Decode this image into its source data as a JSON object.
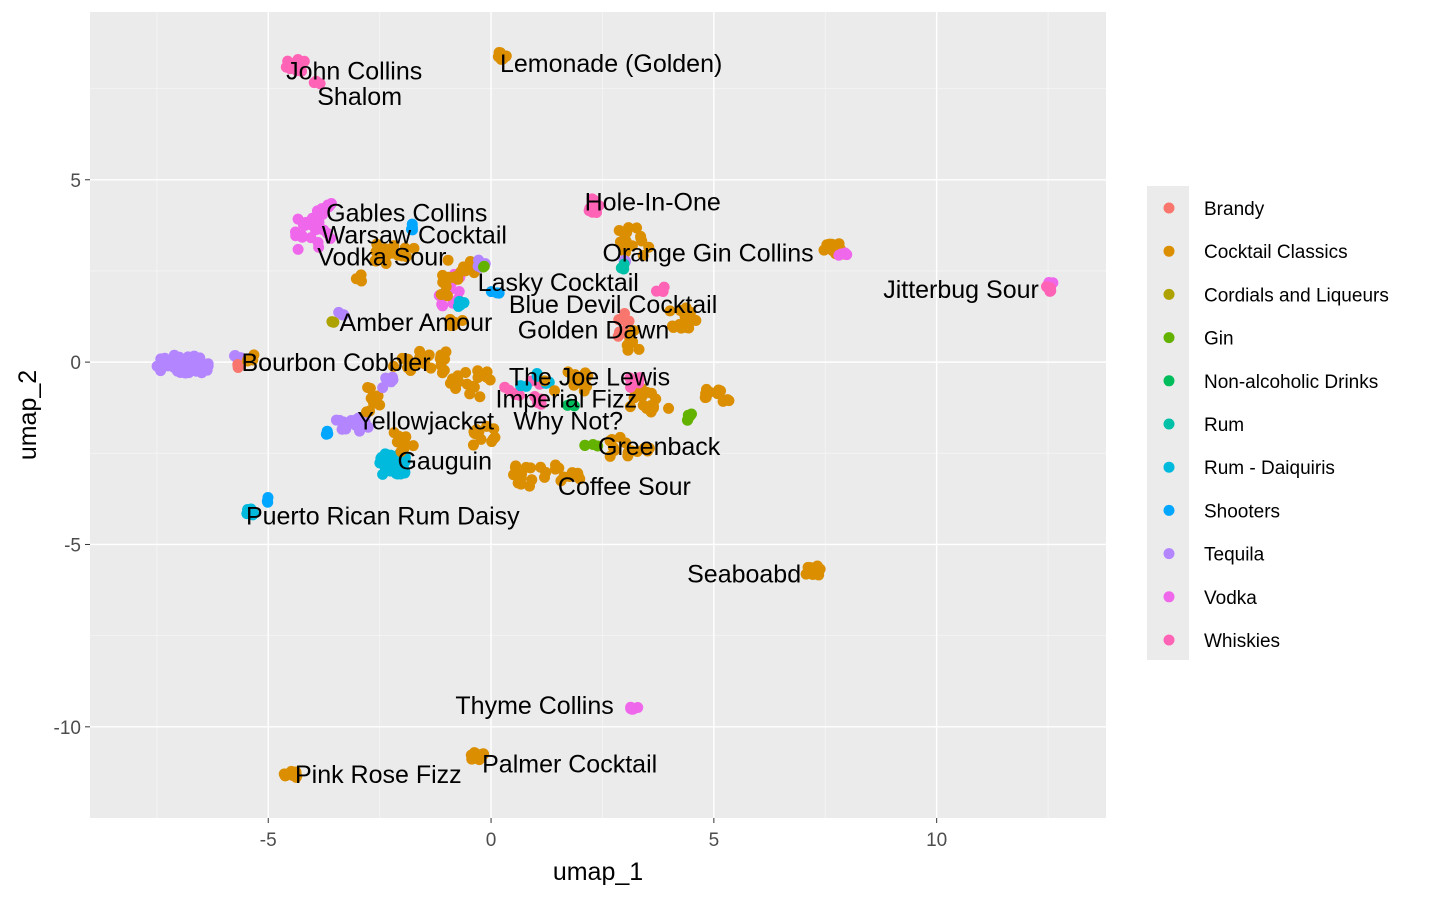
{
  "chart_data": {
    "type": "scatter",
    "xlabel": "umap_1",
    "ylabel": "umap_2",
    "xlim": [
      -9.0,
      13.8
    ],
    "ylim": [
      -12.5,
      9.6
    ],
    "x_ticks": [
      -5,
      0,
      5,
      10
    ],
    "y_ticks": [
      -10,
      -5,
      0,
      5
    ],
    "x_tick_labels": [
      "-5",
      "0",
      "5",
      "10"
    ],
    "y_tick_labels": [
      "-10",
      "-5",
      "0",
      "5"
    ],
    "grid": true,
    "legend": "right",
    "categories": [
      {
        "name": "Brandy",
        "color": "#F8766D"
      },
      {
        "name": "Cocktail Classics",
        "color": "#DB8E00"
      },
      {
        "name": "Cordials and Liqueurs",
        "color": "#AEA200"
      },
      {
        "name": "Gin",
        "color": "#64B200"
      },
      {
        "name": "Non-alcoholic Drinks",
        "color": "#00BD5C"
      },
      {
        "name": "Rum",
        "color": "#00C1A7"
      },
      {
        "name": "Rum - Daiquiris",
        "color": "#00BADE"
      },
      {
        "name": "Shooters",
        "color": "#00A6FF"
      },
      {
        "name": "Tequila",
        "color": "#B385FF"
      },
      {
        "name": "Vodka",
        "color": "#EF67EB"
      },
      {
        "name": "Whiskies",
        "color": "#FF63B6"
      }
    ],
    "labels": [
      {
        "text": "John Collins",
        "x": -4.6,
        "y": 8.0
      },
      {
        "text": "Shalom",
        "x": -3.9,
        "y": 7.3
      },
      {
        "text": "Lemonade (Golden)",
        "x": 0.2,
        "y": 8.2
      },
      {
        "text": "Hole-In-One",
        "x": 2.1,
        "y": 4.4
      },
      {
        "text": "Gables Collins",
        "x": -3.7,
        "y": 4.1
      },
      {
        "text": "Warsaw Cocktail",
        "x": -3.8,
        "y": 3.5
      },
      {
        "text": "Vodka Sour",
        "x": -3.9,
        "y": 2.9
      },
      {
        "text": "Orange Gin Collins",
        "x": 2.5,
        "y": 3.0
      },
      {
        "text": "Lasky Cocktail",
        "x": -0.3,
        "y": 2.2
      },
      {
        "text": "Jitterbug Sour",
        "x": 8.8,
        "y": 2.0
      },
      {
        "text": "Blue Devil Cocktail",
        "x": 0.4,
        "y": 1.6
      },
      {
        "text": "Amber Amour",
        "x": -3.4,
        "y": 1.1
      },
      {
        "text": "Golden Dawn",
        "x": 0.6,
        "y": 0.9
      },
      {
        "text": "Bourbon Cobbler",
        "x": -5.6,
        "y": 0.0
      },
      {
        "text": "The Joe Lewis",
        "x": 0.4,
        "y": -0.4
      },
      {
        "text": "Imperial Fizz",
        "x": 0.1,
        "y": -1.0
      },
      {
        "text": "Yellowjacket",
        "x": -3.0,
        "y": -1.6
      },
      {
        "text": "Why Not?",
        "x": 0.5,
        "y": -1.6
      },
      {
        "text": "Greenback",
        "x": 2.4,
        "y": -2.3
      },
      {
        "text": "Gauguin",
        "x": -2.1,
        "y": -2.7
      },
      {
        "text": "Coffee Sour",
        "x": 1.5,
        "y": -3.4
      },
      {
        "text": "Puerto Rican Rum Daisy",
        "x": -5.5,
        "y": -4.2
      },
      {
        "text": "Seaboabd",
        "x": 4.4,
        "y": -5.8
      },
      {
        "text": "Thyme Collins",
        "x": -0.8,
        "y": -9.4
      },
      {
        "text": "Pink Rose Fizz",
        "x": -4.4,
        "y": -11.3
      },
      {
        "text": "Palmer Cocktail",
        "x": -0.2,
        "y": -11.0
      }
    ],
    "clusters": [
      {
        "c": 10,
        "n": 14,
        "x": -4.4,
        "y": 8.1,
        "sx": 0.25,
        "sy": 0.2
      },
      {
        "c": 10,
        "n": 4,
        "x": -3.9,
        "y": 7.7,
        "sx": 0.1,
        "sy": 0.1
      },
      {
        "c": 1,
        "n": 10,
        "x": 0.2,
        "y": 8.4,
        "sx": 0.15,
        "sy": 0.12
      },
      {
        "c": 10,
        "n": 8,
        "x": 2.3,
        "y": 4.3,
        "sx": 0.2,
        "sy": 0.2
      },
      {
        "c": 9,
        "n": 20,
        "x": -4.0,
        "y": 3.4,
        "sx": 0.4,
        "sy": 0.6
      },
      {
        "c": 9,
        "n": 8,
        "x": -3.7,
        "y": 4.2,
        "sx": 0.2,
        "sy": 0.15
      },
      {
        "c": 7,
        "n": 4,
        "x": -1.8,
        "y": 3.7,
        "sx": 0.1,
        "sy": 0.1
      },
      {
        "c": 1,
        "n": 16,
        "x": -2.2,
        "y": 3.0,
        "sx": 0.5,
        "sy": 0.3
      },
      {
        "c": 1,
        "n": 16,
        "x": 3.2,
        "y": 3.3,
        "sx": 0.4,
        "sy": 0.4
      },
      {
        "c": 8,
        "n": 3,
        "x": 3.0,
        "y": 2.8,
        "sx": 0.1,
        "sy": 0.1
      },
      {
        "c": 5,
        "n": 3,
        "x": 2.9,
        "y": 2.6,
        "sx": 0.1,
        "sy": 0.1
      },
      {
        "c": 1,
        "n": 12,
        "x": 7.7,
        "y": 3.1,
        "sx": 0.25,
        "sy": 0.15
      },
      {
        "c": 9,
        "n": 4,
        "x": 7.9,
        "y": 2.9,
        "sx": 0.1,
        "sy": 0.1
      },
      {
        "c": 9,
        "n": 3,
        "x": 12.6,
        "y": 2.1,
        "sx": 0.15,
        "sy": 0.1
      },
      {
        "c": 10,
        "n": 4,
        "x": 12.5,
        "y": 2.0,
        "sx": 0.1,
        "sy": 0.1
      },
      {
        "c": 9,
        "n": 12,
        "x": -0.9,
        "y": 2.0,
        "sx": 0.3,
        "sy": 0.5
      },
      {
        "c": 1,
        "n": 14,
        "x": -0.6,
        "y": 2.5,
        "sx": 0.4,
        "sy": 0.3
      },
      {
        "c": 8,
        "n": 4,
        "x": -0.2,
        "y": 2.7,
        "sx": 0.1,
        "sy": 0.1
      },
      {
        "c": 3,
        "n": 2,
        "x": -0.2,
        "y": 2.6,
        "sx": 0.05,
        "sy": 0.05
      },
      {
        "c": 6,
        "n": 4,
        "x": -0.8,
        "y": 1.6,
        "sx": 0.2,
        "sy": 0.1
      },
      {
        "c": 7,
        "n": 3,
        "x": 0.1,
        "y": 1.9,
        "sx": 0.1,
        "sy": 0.1
      },
      {
        "c": 1,
        "n": 14,
        "x": 4.3,
        "y": 1.2,
        "sx": 0.3,
        "sy": 0.3
      },
      {
        "c": 0,
        "n": 10,
        "x": 3.0,
        "y": 1.0,
        "sx": 0.15,
        "sy": 0.4
      },
      {
        "c": 1,
        "n": 8,
        "x": 3.2,
        "y": 0.6,
        "sx": 0.15,
        "sy": 0.3
      },
      {
        "c": 10,
        "n": 3,
        "x": 3.8,
        "y": 2.0,
        "sx": 0.1,
        "sy": 0.1
      },
      {
        "c": 1,
        "n": 8,
        "x": -1.0,
        "y": 2.1,
        "sx": 0.3,
        "sy": 0.3
      },
      {
        "c": 2,
        "n": 3,
        "x": -3.5,
        "y": 1.1,
        "sx": 0.1,
        "sy": 0.1
      },
      {
        "c": 8,
        "n": 3,
        "x": -3.4,
        "y": 1.3,
        "sx": 0.1,
        "sy": 0.1
      },
      {
        "c": 1,
        "n": 4,
        "x": -3.0,
        "y": 2.3,
        "sx": 0.1,
        "sy": 0.1
      },
      {
        "c": 1,
        "n": 6,
        "x": -0.7,
        "y": 1.1,
        "sx": 0.3,
        "sy": 0.1
      },
      {
        "c": 8,
        "n": 44,
        "x": -6.9,
        "y": -0.05,
        "sx": 0.6,
        "sy": 0.25
      },
      {
        "c": 8,
        "n": 4,
        "x": -5.7,
        "y": 0.1,
        "sx": 0.1,
        "sy": 0.1
      },
      {
        "c": 0,
        "n": 2,
        "x": -5.7,
        "y": -0.1,
        "sx": 0.05,
        "sy": 0.05
      },
      {
        "c": 1,
        "n": 4,
        "x": -5.4,
        "y": 0.1,
        "sx": 0.1,
        "sy": 0.1
      },
      {
        "c": 1,
        "n": 22,
        "x": -1.6,
        "y": 0.0,
        "sx": 0.6,
        "sy": 0.3
      },
      {
        "c": 1,
        "n": 16,
        "x": -0.5,
        "y": -0.6,
        "sx": 0.5,
        "sy": 0.4
      },
      {
        "c": 10,
        "n": 12,
        "x": 0.7,
        "y": -0.8,
        "sx": 0.5,
        "sy": 0.4
      },
      {
        "c": 6,
        "n": 6,
        "x": 1.0,
        "y": -0.5,
        "sx": 0.4,
        "sy": 0.2
      },
      {
        "c": 1,
        "n": 14,
        "x": 1.7,
        "y": -0.5,
        "sx": 0.5,
        "sy": 0.3
      },
      {
        "c": 1,
        "n": 16,
        "x": 3.6,
        "y": -1.0,
        "sx": 0.5,
        "sy": 0.4
      },
      {
        "c": 10,
        "n": 5,
        "x": 3.3,
        "y": -0.6,
        "sx": 0.2,
        "sy": 0.2
      },
      {
        "c": 1,
        "n": 12,
        "x": 5.1,
        "y": -0.9,
        "sx": 0.3,
        "sy": 0.2
      },
      {
        "c": 3,
        "n": 5,
        "x": 4.4,
        "y": -1.5,
        "sx": 0.2,
        "sy": 0.1
      },
      {
        "c": 3,
        "n": 4,
        "x": 2.3,
        "y": -2.2,
        "sx": 0.2,
        "sy": 0.1
      },
      {
        "c": 4,
        "n": 3,
        "x": 1.8,
        "y": -1.2,
        "sx": 0.1,
        "sy": 0.1
      },
      {
        "c": 1,
        "n": 14,
        "x": 3.1,
        "y": -2.3,
        "sx": 0.5,
        "sy": 0.3
      },
      {
        "c": 1,
        "n": 12,
        "x": -0.2,
        "y": -2.0,
        "sx": 0.3,
        "sy": 0.3
      },
      {
        "c": 8,
        "n": 14,
        "x": -3.1,
        "y": -1.7,
        "sx": 0.4,
        "sy": 0.2
      },
      {
        "c": 7,
        "n": 3,
        "x": -3.6,
        "y": -1.9,
        "sx": 0.1,
        "sy": 0.1
      },
      {
        "c": 1,
        "n": 8,
        "x": -2.6,
        "y": -1.0,
        "sx": 0.2,
        "sy": 0.4
      },
      {
        "c": 8,
        "n": 6,
        "x": -2.4,
        "y": -0.6,
        "sx": 0.2,
        "sy": 0.2
      },
      {
        "c": 6,
        "n": 40,
        "x": -2.2,
        "y": -2.8,
        "sx": 0.3,
        "sy": 0.3
      },
      {
        "c": 1,
        "n": 10,
        "x": -2.0,
        "y": -2.2,
        "sx": 0.3,
        "sy": 0.3
      },
      {
        "c": 1,
        "n": 26,
        "x": 1.3,
        "y": -3.1,
        "sx": 0.8,
        "sy": 0.3
      },
      {
        "c": 6,
        "n": 8,
        "x": -5.4,
        "y": -4.1,
        "sx": 0.15,
        "sy": 0.1
      },
      {
        "c": 7,
        "n": 3,
        "x": -5.1,
        "y": -3.8,
        "sx": 0.1,
        "sy": 0.1
      },
      {
        "c": 1,
        "n": 14,
        "x": 7.2,
        "y": -5.7,
        "sx": 0.2,
        "sy": 0.15
      },
      {
        "c": 9,
        "n": 6,
        "x": 3.2,
        "y": -9.5,
        "sx": 0.1,
        "sy": 0.05
      },
      {
        "c": 1,
        "n": 12,
        "x": -4.5,
        "y": -11.3,
        "sx": 0.15,
        "sy": 0.1
      },
      {
        "c": 1,
        "n": 10,
        "x": -0.3,
        "y": -10.8,
        "sx": 0.15,
        "sy": 0.1
      }
    ]
  }
}
